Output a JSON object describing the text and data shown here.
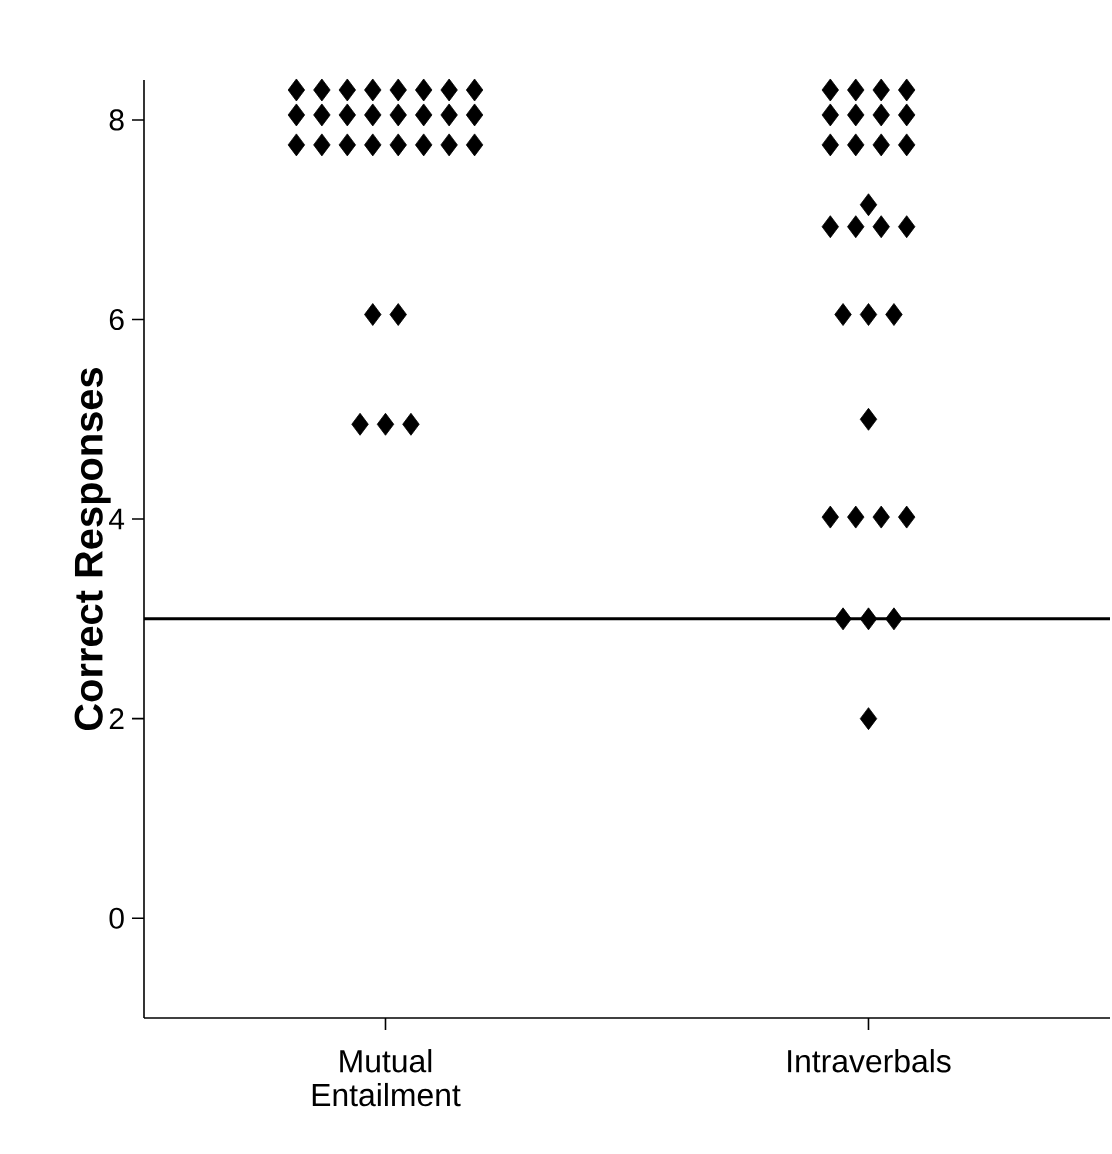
{
  "chart_data": {
    "type": "scatter",
    "ylabel": "Correct Responses",
    "categories": [
      "Mutual Entailment",
      "Intraverbals"
    ],
    "ylim": [
      -1,
      8.4
    ],
    "yticks": [
      0,
      2,
      4,
      6,
      8
    ],
    "marker": "diamond",
    "series": [
      {
        "color": "#000000",
        "x": [
          "Mutual Entailment",
          "Mutual Entailment",
          "Mutual Entailment",
          "Mutual Entailment",
          "Mutual Entailment",
          "Mutual Entailment",
          "Mutual Entailment",
          "Mutual Entailment",
          "Mutual Entailment",
          "Mutual Entailment",
          "Mutual Entailment",
          "Mutual Entailment",
          "Mutual Entailment",
          "Mutual Entailment",
          "Mutual Entailment",
          "Mutual Entailment",
          "Mutual Entailment",
          "Mutual Entailment",
          "Mutual Entailment",
          "Mutual Entailment",
          "Mutual Entailment",
          "Mutual Entailment",
          "Mutual Entailment",
          "Mutual Entailment",
          "Mutual Entailment",
          "Mutual Entailment",
          "Mutual Entailment",
          "Mutual Entailment",
          "Mutual Entailment"
        ],
        "values": [
          8.3,
          8.3,
          8.3,
          8.3,
          8.3,
          8.3,
          8.3,
          8.3,
          8.05,
          8.05,
          8.05,
          8.05,
          8.05,
          8.05,
          8.05,
          8.05,
          7.75,
          7.75,
          7.75,
          7.75,
          7.75,
          7.75,
          7.75,
          7.75,
          6.05,
          6.05,
          4.95,
          4.95,
          4.95
        ]
      },
      {
        "color": "#000000",
        "x": [
          "Intraverbals",
          "Intraverbals",
          "Intraverbals",
          "Intraverbals",
          "Intraverbals",
          "Intraverbals",
          "Intraverbals",
          "Intraverbals",
          "Intraverbals",
          "Intraverbals",
          "Intraverbals",
          "Intraverbals",
          "Intraverbals",
          "Intraverbals",
          "Intraverbals",
          "Intraverbals",
          "Intraverbals",
          "Intraverbals",
          "Intraverbals",
          "Intraverbals",
          "Intraverbals",
          "Intraverbals",
          "Intraverbals",
          "Intraverbals",
          "Intraverbals",
          "Intraverbals",
          "Intraverbals",
          "Intraverbals",
          "Intraverbals"
        ],
        "values": [
          8.3,
          8.3,
          8.3,
          8.3,
          8.05,
          8.05,
          8.05,
          8.05,
          7.75,
          7.75,
          7.75,
          7.75,
          7.15,
          6.93,
          6.93,
          6.93,
          6.93,
          6.05,
          6.05,
          6.05,
          5.0,
          4.02,
          4.02,
          4.02,
          4.02,
          3.0,
          3.0,
          3.0,
          2.0
        ]
      }
    ],
    "ref_lines": [
      {
        "axis": "y",
        "value": 3,
        "color": "#000000"
      }
    ]
  }
}
